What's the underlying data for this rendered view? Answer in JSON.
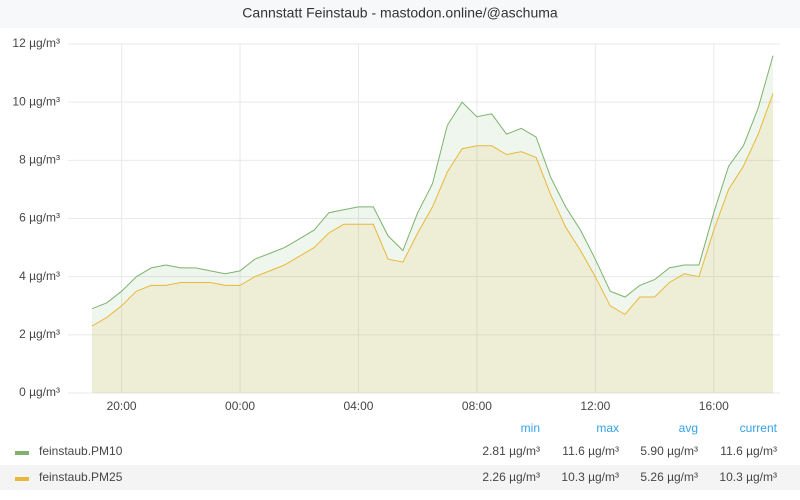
{
  "chart_data": {
    "type": "area",
    "title": "Cannstatt Feinstaub - mastodon.online/@aschuma",
    "x": [
      "19:00",
      "19:30",
      "20:00",
      "20:30",
      "21:00",
      "21:30",
      "22:00",
      "22:30",
      "23:00",
      "23:30",
      "00:00",
      "00:30",
      "01:00",
      "01:30",
      "02:00",
      "02:30",
      "03:00",
      "03:30",
      "04:00",
      "04:30",
      "05:00",
      "05:30",
      "06:00",
      "06:30",
      "07:00",
      "07:30",
      "08:00",
      "08:30",
      "09:00",
      "09:30",
      "10:00",
      "10:30",
      "11:00",
      "11:30",
      "12:00",
      "12:30",
      "13:00",
      "13:30",
      "14:00",
      "14:30",
      "15:00",
      "15:30",
      "16:00",
      "16:30",
      "17:00",
      "17:30",
      "18:00"
    ],
    "series": [
      {
        "name": "feinstaub.PM10",
        "color": "#7eb26d",
        "values": [
          2.9,
          3.1,
          3.5,
          4.0,
          4.3,
          4.4,
          4.3,
          4.3,
          4.2,
          4.1,
          4.2,
          4.6,
          4.8,
          5.0,
          5.3,
          5.6,
          6.2,
          6.3,
          6.4,
          6.4,
          5.4,
          4.9,
          6.2,
          7.2,
          9.2,
          10.0,
          9.5,
          9.6,
          8.9,
          9.1,
          8.8,
          7.4,
          6.4,
          5.6,
          4.6,
          3.5,
          3.3,
          3.7,
          3.9,
          4.3,
          4.4,
          4.4,
          6.2,
          7.8,
          8.5,
          9.8,
          11.6
        ],
        "stats": [
          2.81,
          11.6,
          5.9,
          11.6
        ],
        "stats_labels": [
          "2.81 µg/m³",
          "11.6 µg/m³",
          "5.90 µg/m³",
          "11.6 µg/m³"
        ]
      },
      {
        "name": "feinstaub.PM25",
        "color": "#eab839",
        "values": [
          2.3,
          2.6,
          3.0,
          3.5,
          3.7,
          3.7,
          3.8,
          3.8,
          3.8,
          3.7,
          3.7,
          4.0,
          4.2,
          4.4,
          4.7,
          5.0,
          5.5,
          5.8,
          5.8,
          5.8,
          4.6,
          4.5,
          5.5,
          6.4,
          7.6,
          8.4,
          8.5,
          8.5,
          8.2,
          8.3,
          8.1,
          6.8,
          5.7,
          4.9,
          4.0,
          3.0,
          2.7,
          3.3,
          3.3,
          3.8,
          4.1,
          4.0,
          5.6,
          7.0,
          7.8,
          8.9,
          10.3
        ],
        "stats": [
          2.26,
          10.3,
          5.26,
          10.3
        ],
        "stats_labels": [
          "2.26 µg/m³",
          "10.3 µg/m³",
          "5.26 µg/m³",
          "10.3 µg/m³"
        ]
      }
    ],
    "stats_columns": [
      "min",
      "max",
      "avg",
      "current"
    ],
    "ylim": [
      0,
      12
    ],
    "yticks": [
      {
        "value": 0,
        "label": "0 µg/m³"
      },
      {
        "value": 2,
        "label": "2 µg/m³"
      },
      {
        "value": 4,
        "label": "4 µg/m³"
      },
      {
        "value": 6,
        "label": "6 µg/m³"
      },
      {
        "value": 8,
        "label": "8 µg/m³"
      },
      {
        "value": 10,
        "label": "10 µg/m³"
      },
      {
        "value": 12,
        "label": "12 µg/m³"
      }
    ],
    "xticks": [
      "20:00",
      "00:00",
      "04:00",
      "08:00",
      "12:00",
      "16:00"
    ],
    "grid": true
  }
}
